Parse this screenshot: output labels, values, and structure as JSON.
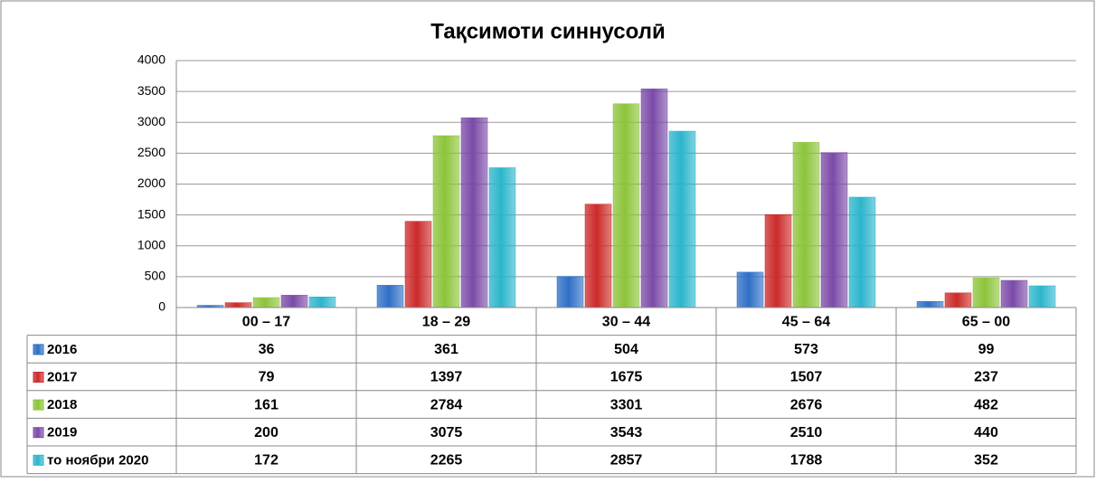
{
  "chart_data": {
    "type": "bar",
    "title": "Тақсимоти синнусолӣ",
    "categories": [
      "00 – 17",
      "18 – 29",
      "30 – 44",
      "45 – 64",
      "65 – 00"
    ],
    "series": [
      {
        "name": "2016",
        "color": "#2e6fc6",
        "values": [
          36,
          361,
          504,
          573,
          99
        ]
      },
      {
        "name": "2017",
        "color": "#cc2a2a",
        "values": [
          79,
          1397,
          1675,
          1507,
          237
        ]
      },
      {
        "name": "2018",
        "color": "#8cc43a",
        "values": [
          161,
          2784,
          3301,
          2676,
          482
        ]
      },
      {
        "name": "2019",
        "color": "#7b4aa8",
        "values": [
          200,
          3075,
          3543,
          2510,
          440
        ]
      },
      {
        "name": "то ноябри 2020",
        "color": "#2bb5cc",
        "values": [
          172,
          2265,
          2857,
          1788,
          352
        ]
      }
    ],
    "ylim": [
      0,
      4000
    ],
    "yticks": [
      0,
      500,
      1000,
      1500,
      2000,
      2500,
      3000,
      3500,
      4000
    ],
    "grid": true,
    "data_table": true
  }
}
